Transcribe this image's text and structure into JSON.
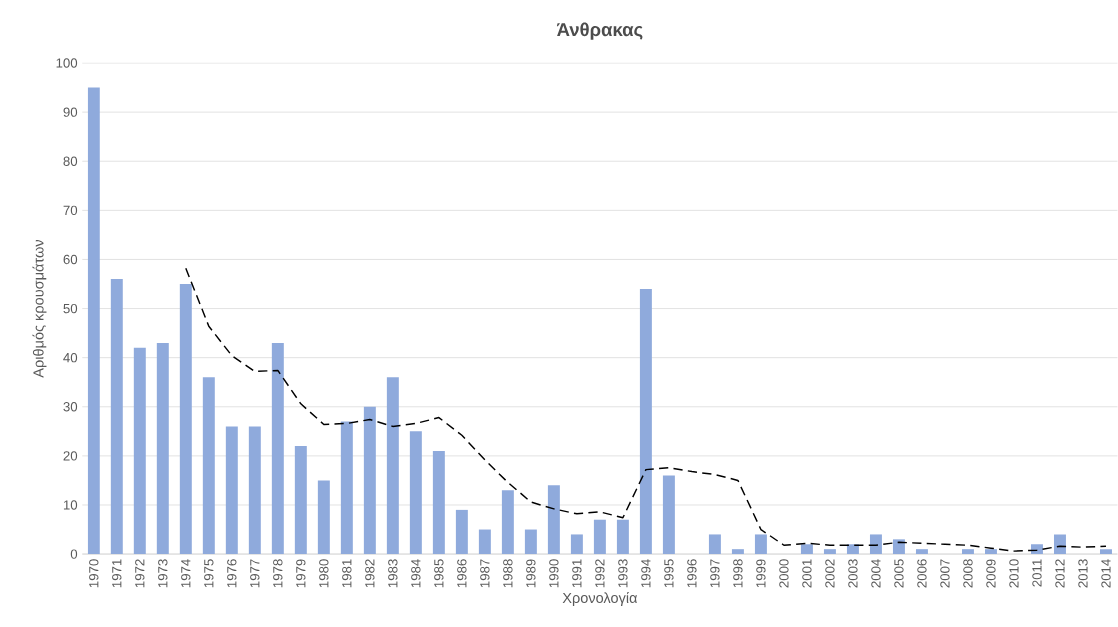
{
  "chart_data": {
    "type": "bar",
    "title": "Άνθρακας",
    "xlabel": "Χρονολογία",
    "ylabel": "Αριθμός κρουσμάτων",
    "categories": [
      "1970",
      "1971",
      "1972",
      "1973",
      "1974",
      "1975",
      "1976",
      "1977",
      "1978",
      "1979",
      "1980",
      "1981",
      "1982",
      "1983",
      "1984",
      "1985",
      "1986",
      "1987",
      "1988",
      "1989",
      "1990",
      "1991",
      "1992",
      "1993",
      "1994",
      "1995",
      "1996",
      "1997",
      "1998",
      "1999",
      "2000",
      "2001",
      "2002",
      "2003",
      "2004",
      "2005",
      "2006",
      "2007",
      "2008",
      "2009",
      "2010",
      "2011",
      "2012",
      "2013",
      "2014"
    ],
    "series": [
      {
        "color": "#8faadc",
        "values": [
          95,
          56,
          42,
          43,
          55,
          36,
          26,
          26,
          43,
          22,
          15,
          27,
          30,
          36,
          25,
          21,
          9,
          5,
          13,
          5,
          14,
          4,
          7,
          7,
          54,
          16,
          0,
          4,
          1,
          4,
          0,
          2,
          1,
          2,
          4,
          3,
          1,
          0,
          1,
          1,
          0,
          2,
          4,
          0,
          1
        ]
      },
      {
        "type": "line",
        "color": "#000000",
        "line_style": "dashed",
        "values": [
          null,
          null,
          null,
          null,
          58.2,
          46.4,
          40.4,
          37.2,
          37.4,
          30.6,
          26.4,
          26.6,
          27.4,
          26,
          26.6,
          27.8,
          24.2,
          19.2,
          14.6,
          10.6,
          9.2,
          8.2,
          8.6,
          7.4,
          17.2,
          17.6,
          16.8,
          16.2,
          15,
          5,
          1.8,
          2.2,
          1.8,
          1.8,
          1.8,
          2.4,
          2.2,
          2,
          1.8,
          1.2,
          0.6,
          0.8,
          1.6,
          1.4,
          1.6
        ]
      }
    ],
    "ylim": [
      0,
      100
    ],
    "yticks": [
      0,
      10,
      20,
      30,
      40,
      50,
      60,
      70,
      80,
      90,
      100
    ],
    "grid": "y",
    "legend": false
  }
}
